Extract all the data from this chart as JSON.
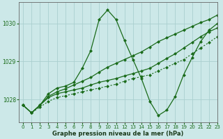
{
  "xlabel": "Graphe pression niveau de la mer (hPa)",
  "bg_color": "#cce8e8",
  "grid_color": "#aacfcf",
  "line_color": "#1a6b1a",
  "xlim": [
    -0.5,
    23
  ],
  "ylim": [
    1027.4,
    1030.55
  ],
  "yticks": [
    1028,
    1029,
    1030
  ],
  "xticks": [
    0,
    1,
    2,
    3,
    4,
    5,
    6,
    7,
    8,
    9,
    10,
    11,
    12,
    13,
    14,
    15,
    16,
    17,
    18,
    19,
    20,
    21,
    22,
    23
  ],
  "series": [
    {
      "x": [
        0,
        1,
        2,
        3,
        4,
        5,
        6,
        7,
        8,
        9,
        10,
        11,
        12,
        13,
        14,
        15,
        16,
        17,
        18,
        19,
        20,
        21,
        22,
        23
      ],
      "y": [
        1027.85,
        1027.65,
        1027.8,
        1027.95,
        1028.05,
        1028.1,
        1028.15,
        1028.2,
        1028.25,
        1028.3,
        1028.35,
        1028.4,
        1028.48,
        1028.55,
        1028.6,
        1028.65,
        1028.75,
        1028.85,
        1028.95,
        1029.05,
        1029.2,
        1029.35,
        1029.5,
        1029.65
      ],
      "style": "dotted"
    },
    {
      "x": [
        0,
        1,
        2,
        3,
        4,
        5,
        6,
        7,
        8,
        9,
        10,
        11,
        12,
        13,
        14,
        15,
        16,
        17,
        18,
        19,
        20,
        21,
        22,
        23
      ],
      "y": [
        1027.85,
        1027.65,
        1027.85,
        1028.05,
        1028.15,
        1028.2,
        1028.25,
        1028.3,
        1028.38,
        1028.45,
        1028.5,
        1028.55,
        1028.62,
        1028.68,
        1028.75,
        1028.82,
        1028.95,
        1029.08,
        1029.2,
        1029.35,
        1029.5,
        1029.65,
        1029.78,
        1029.88
      ],
      "style": "solid"
    },
    {
      "x": [
        0,
        1,
        2,
        3,
        4,
        5,
        6,
        7,
        8,
        9,
        10,
        11,
        12,
        13,
        14,
        15,
        16,
        17,
        18,
        19,
        20,
        21,
        22,
        23
      ],
      "y": [
        1027.85,
        1027.65,
        1027.85,
        1028.15,
        1028.3,
        1028.35,
        1028.45,
        1028.82,
        1029.28,
        1030.1,
        1030.35,
        1030.1,
        1029.55,
        1029.05,
        1028.55,
        1027.95,
        1027.58,
        1027.72,
        1028.08,
        1028.65,
        1029.1,
        1029.52,
        1029.82,
        1030.0
      ],
      "style": "solid"
    },
    {
      "x": [
        0,
        1,
        2,
        3,
        4,
        5,
        6,
        7,
        8,
        9,
        10,
        11,
        12,
        13,
        14,
        15,
        16,
        17,
        18,
        19,
        20,
        21,
        22,
        23
      ],
      "y": [
        1027.85,
        1027.65,
        1027.85,
        1028.08,
        1028.2,
        1028.28,
        1028.38,
        1028.48,
        1028.58,
        1028.72,
        1028.85,
        1028.95,
        1029.05,
        1029.15,
        1029.25,
        1029.38,
        1029.52,
        1029.62,
        1029.72,
        1029.82,
        1029.92,
        1030.02,
        1030.1,
        1030.22
      ],
      "style": "solid_upper"
    }
  ]
}
